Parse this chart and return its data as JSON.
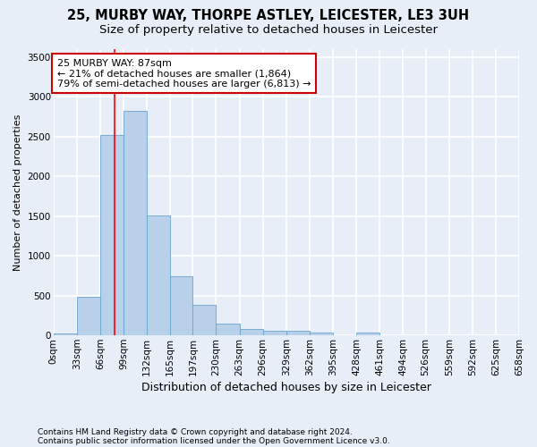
{
  "title1": "25, MURBY WAY, THORPE ASTLEY, LEICESTER, LE3 3UH",
  "title2": "Size of property relative to detached houses in Leicester",
  "xlabel": "Distribution of detached houses by size in Leicester",
  "ylabel": "Number of detached properties",
  "footer1": "Contains HM Land Registry data © Crown copyright and database right 2024.",
  "footer2": "Contains public sector information licensed under the Open Government Licence v3.0.",
  "annotation_line1": "25 MURBY WAY: 87sqm",
  "annotation_line2": "← 21% of detached houses are smaller (1,864)",
  "annotation_line3": "79% of semi-detached houses are larger (6,813) →",
  "bar_color": "#b8d0ea",
  "bar_edge_color": "#6ba3cd",
  "red_line_x": 87,
  "bins": [
    0,
    33,
    66,
    99,
    132,
    165,
    197,
    230,
    263,
    296,
    329,
    362,
    395,
    428,
    461,
    494,
    526,
    559,
    592,
    625,
    658
  ],
  "bin_labels": [
    "0sqm",
    "33sqm",
    "66sqm",
    "99sqm",
    "132sqm",
    "165sqm",
    "197sqm",
    "230sqm",
    "263sqm",
    "296sqm",
    "329sqm",
    "362sqm",
    "395sqm",
    "428sqm",
    "461sqm",
    "494sqm",
    "526sqm",
    "559sqm",
    "592sqm",
    "625sqm",
    "658sqm"
  ],
  "values": [
    25,
    480,
    2520,
    2820,
    1510,
    745,
    385,
    145,
    80,
    55,
    55,
    30,
    5,
    30,
    5,
    5,
    0,
    0,
    0,
    0
  ],
  "ylim": [
    0,
    3600
  ],
  "yticks": [
    0,
    500,
    1000,
    1500,
    2000,
    2500,
    3000,
    3500
  ],
  "bg_color": "#e8eef8",
  "grid_color": "#ffffff",
  "title1_fontsize": 10.5,
  "title2_fontsize": 9.5,
  "xlabel_fontsize": 9,
  "ylabel_fontsize": 8,
  "tick_fontsize": 7.5,
  "annotation_fontsize": 8,
  "footer_fontsize": 6.5,
  "annotation_box_color": "#ffffff",
  "annotation_box_edge": "#cc0000"
}
